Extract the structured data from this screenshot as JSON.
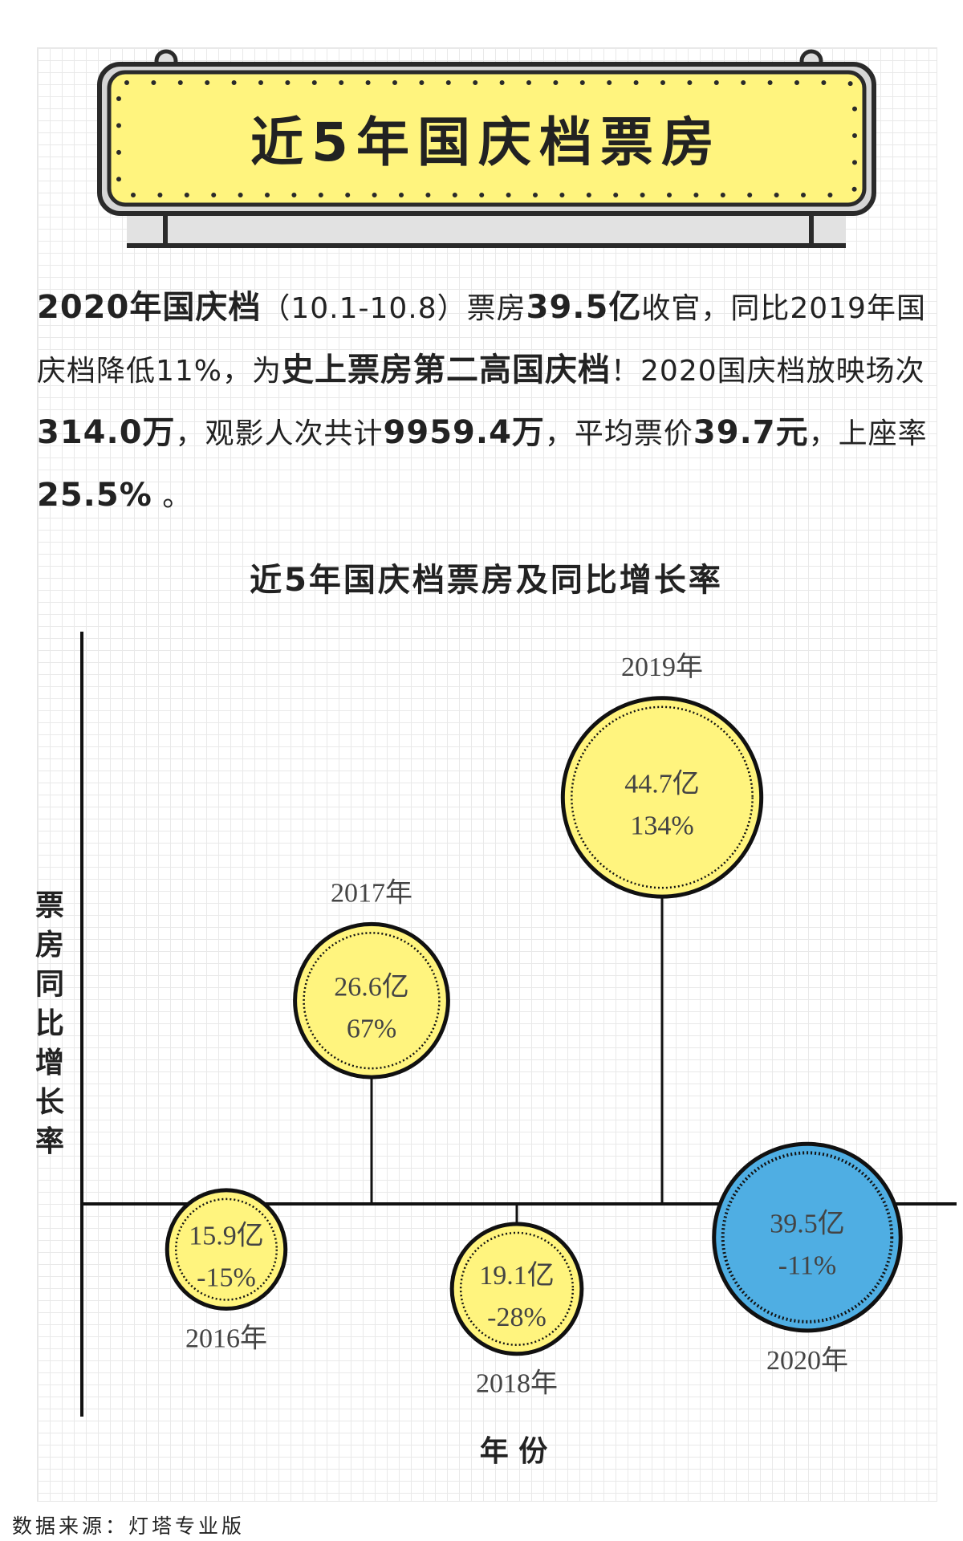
{
  "banner": {
    "title": "近5年国庆档票房"
  },
  "intro": {
    "s1b": "2020年国庆档",
    "s2": "（10.1-10.8）票房",
    "s3b": "39.5亿",
    "s4": "收官，同比2019年国庆档降低11%，为",
    "s5b": "史上票房第二高国庆档",
    "s6": "！2020国庆档放映场次",
    "s7b": "314.0万",
    "s8": "，观影人次共计",
    "s9b": "9959.4万",
    "s10": "，平均票价",
    "s11b": "39.7元",
    "s12": "，上座率",
    "s13b": "25.5%",
    "s14": " 。"
  },
  "chart_data": {
    "type": "scatter",
    "title": "近5年国庆档票房及同比增长率",
    "xlabel": "年 份",
    "ylabel": "票房同比增长率",
    "points": [
      {
        "year": "2016年",
        "value_label": "15.9亿",
        "value": 15.9,
        "growth_label": "-15%",
        "growth": -15,
        "color": "#FFF47E"
      },
      {
        "year": "2017年",
        "value_label": "26.6亿",
        "value": 26.6,
        "growth_label": "67%",
        "growth": 67,
        "color": "#FFF47E"
      },
      {
        "year": "2018年",
        "value_label": "19.1亿",
        "value": 19.1,
        "growth_label": "-28%",
        "growth": -28,
        "color": "#FFF47E"
      },
      {
        "year": "2019年",
        "value_label": "44.7亿",
        "value": 44.7,
        "growth_label": "134%",
        "growth": 134,
        "color": "#FFF47E"
      },
      {
        "year": "2020年",
        "value_label": "39.5亿",
        "value": 39.5,
        "growth_label": "-11%",
        "growth": -11,
        "color": "#4FAEE3"
      }
    ]
  },
  "footer": {
    "source": "数据来源：灯塔专业版"
  }
}
